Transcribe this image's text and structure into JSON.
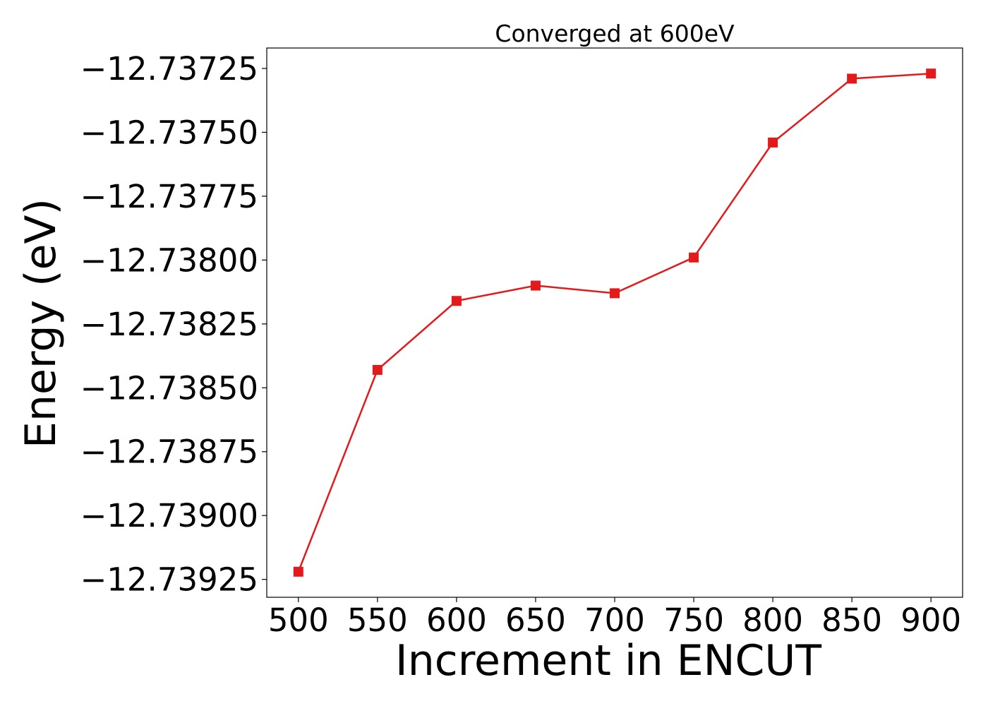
{
  "chart_data": {
    "type": "line",
    "title": "Converged at 600eV",
    "xlabel": "Increment in ENCUT",
    "ylabel": "Energy (eV)",
    "x": [
      500,
      550,
      600,
      650,
      700,
      750,
      800,
      850,
      900
    ],
    "series": [
      {
        "values": [
          -12.73922,
          -12.73843,
          -12.73816,
          -12.7381,
          -12.73813,
          -12.73799,
          -12.73754,
          -12.73729,
          -12.73727
        ],
        "color": "#e31a1c",
        "marker": "square"
      }
    ],
    "xticks": [
      500,
      550,
      600,
      650,
      700,
      750,
      800,
      850,
      900
    ],
    "xtick_labels": [
      "500",
      "550",
      "600",
      "650",
      "700",
      "750",
      "800",
      "850",
      "900"
    ],
    "yticks": [
      -12.73725,
      -12.7375,
      -12.73775,
      -12.738,
      -12.73825,
      -12.7385,
      -12.73875,
      -12.739,
      -12.73925
    ],
    "ytick_labels": [
      "−12.73725",
      "−12.73750",
      "−12.73775",
      "−12.73800",
      "−12.73825",
      "−12.73850",
      "−12.73875",
      "−12.73900",
      "−12.73925"
    ],
    "xlim": [
      480,
      920
    ],
    "ylim": [
      -12.73932,
      -12.73717
    ],
    "grid": false,
    "legend": "none"
  }
}
